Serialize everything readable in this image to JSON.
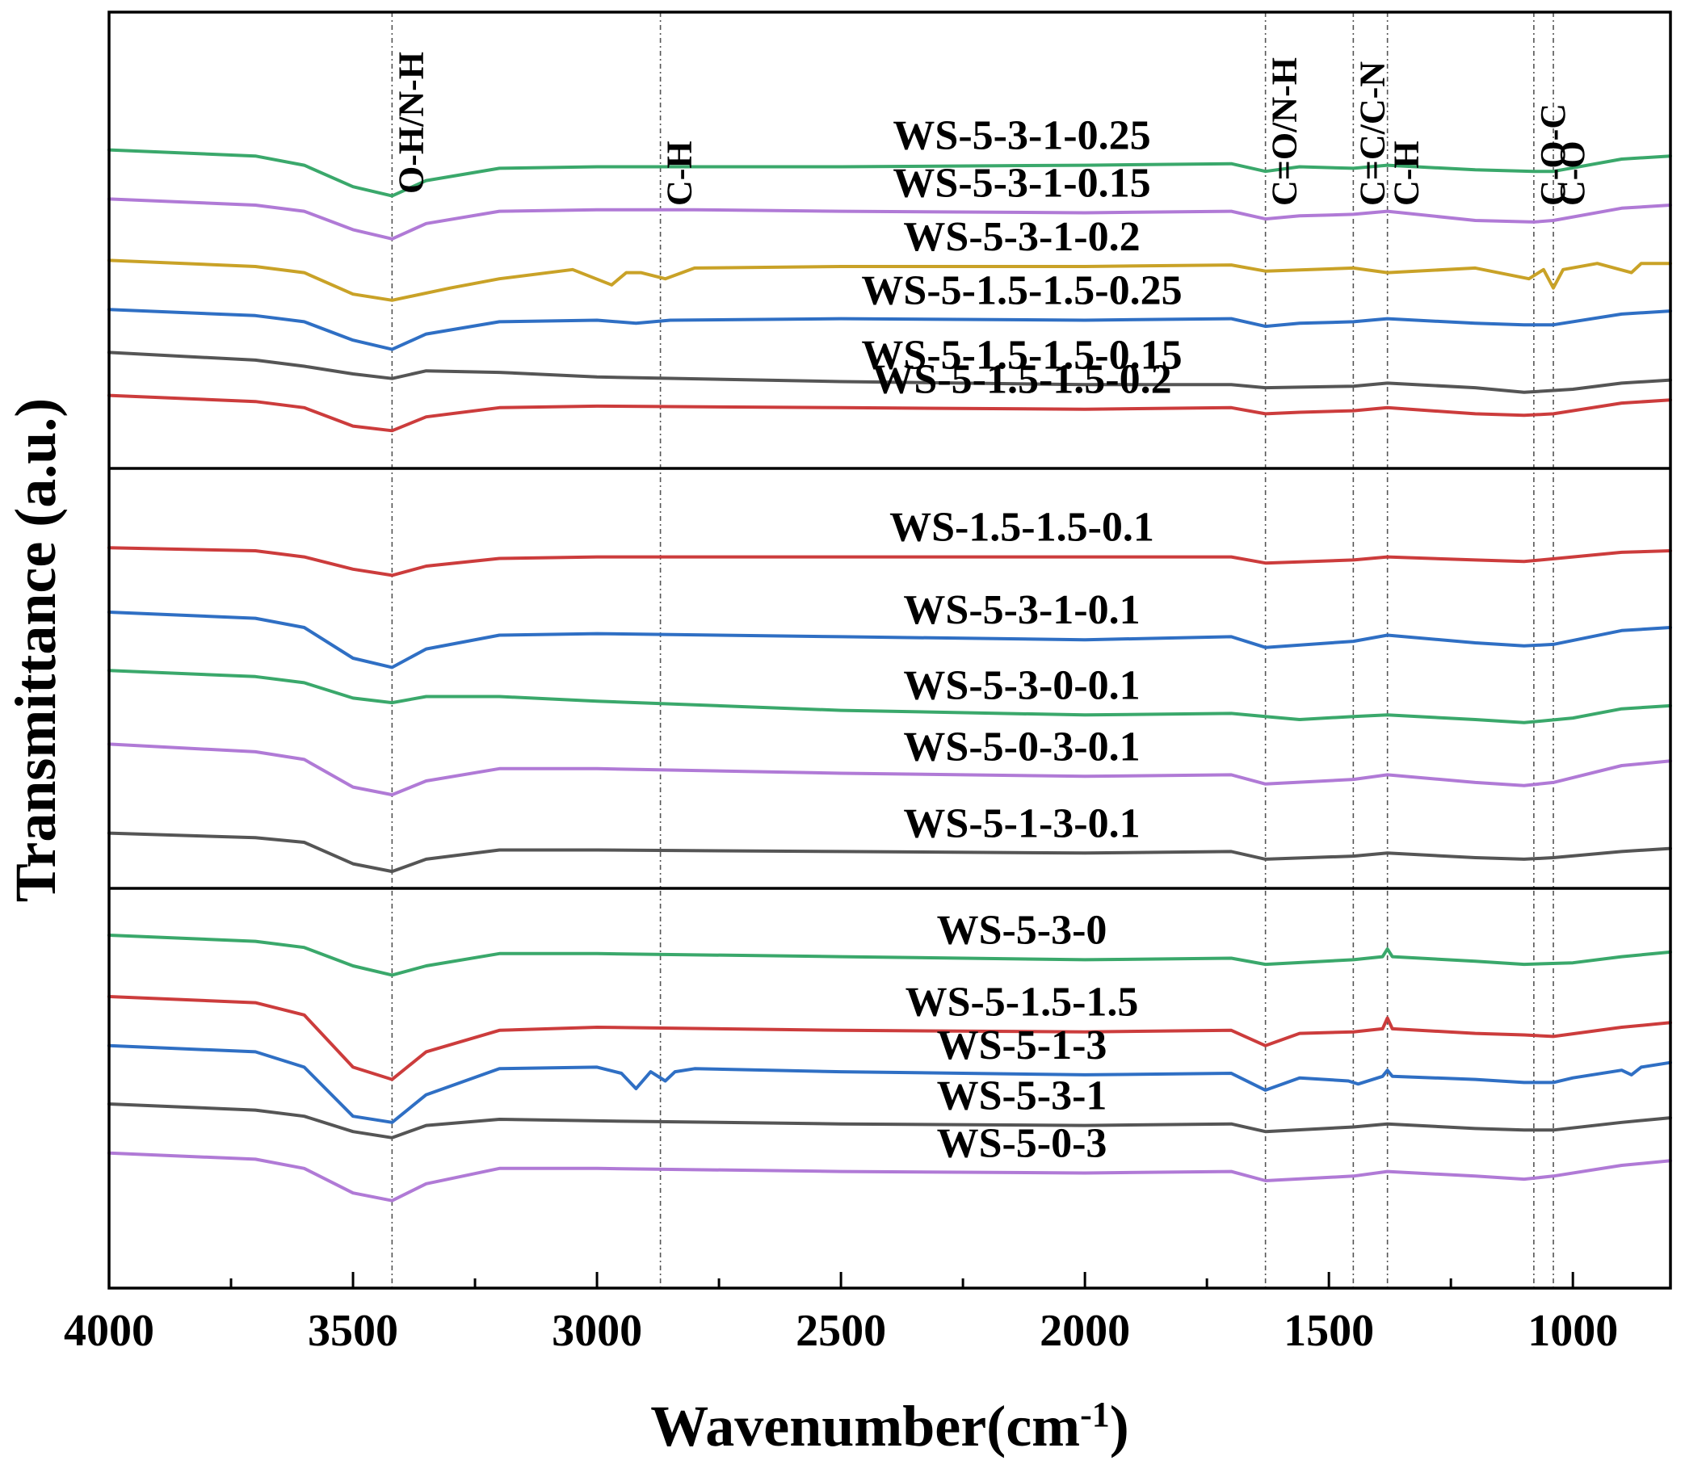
{
  "chart_data": {
    "type": "line",
    "subtype": "stacked FTIR spectra in three panels",
    "title": "",
    "xlabel": "Wavenumber(cm",
    "xlabel_sup": "-1",
    "xlabel_suffix": ")",
    "ylabel": "Transmittance (a.u.)",
    "xlim": [
      4000,
      800
    ],
    "x_reversed": true,
    "x_ticks": [
      4000,
      3500,
      3000,
      2500,
      2000,
      1500,
      1000
    ],
    "x_tick_labels": [
      "4000",
      "3500",
      "3000",
      "2500",
      "2000",
      "1500",
      "1000"
    ],
    "y_ticks": "none",
    "grid": false,
    "legend": "none (series labeled inline)",
    "colors": {
      "green": "#3aa86b",
      "purple": "#b07ad6",
      "gold": "#c9a227",
      "blue": "#2f6fc4",
      "gray": "#555555",
      "red": "#cc3c3c"
    },
    "reference_lines": [
      {
        "x": 3420,
        "label": "O-H/N-H"
      },
      {
        "x": 2870,
        "label": "C-H"
      },
      {
        "x": 1630,
        "label": "C=O/N-H"
      },
      {
        "x": 1450,
        "label": "C=C/C-N"
      },
      {
        "x": 1380,
        "label": "C-H"
      },
      {
        "x": 1080,
        "label": "C-O-C"
      },
      {
        "x": 1040,
        "label": "C-O"
      }
    ],
    "panels": [
      {
        "name": "top",
        "series": [
          {
            "name": "WS-5-3-1-0.25",
            "color": "green",
            "x": [
              4000,
              3700,
              3600,
              3500,
              3420,
              3350,
              3200,
              3000,
              2800,
              2500,
              2000,
              1700,
              1630,
              1560,
              1450,
              1380,
              1200,
              1080,
              1040,
              900,
              800
            ],
            "y": [
              8.8,
              8.6,
              8.3,
              7.6,
              7.3,
              7.8,
              8.2,
              8.25,
              8.25,
              8.25,
              8.3,
              8.35,
              8.1,
              8.25,
              8.2,
              8.3,
              8.15,
              8.1,
              8.1,
              8.5,
              8.6
            ]
          },
          {
            "name": "WS-5-3-1-0.15",
            "color": "purple",
            "x": [
              4000,
              3700,
              3600,
              3500,
              3420,
              3350,
              3200,
              3000,
              2800,
              2500,
              2000,
              1700,
              1630,
              1560,
              1450,
              1380,
              1200,
              1080,
              1040,
              900,
              800
            ],
            "y": [
              7.2,
              7.0,
              6.8,
              6.2,
              5.9,
              6.4,
              6.8,
              6.85,
              6.85,
              6.8,
              6.75,
              6.8,
              6.55,
              6.65,
              6.7,
              6.8,
              6.5,
              6.45,
              6.5,
              6.9,
              7.0
            ]
          },
          {
            "name": "WS-5-3-1-0.2",
            "color": "gold",
            "x": [
              4000,
              3700,
              3600,
              3500,
              3420,
              3300,
              3200,
              3050,
              2970,
              2940,
              2910,
              2860,
              2800,
              2500,
              2000,
              1700,
              1630,
              1450,
              1380,
              1200,
              1090,
              1060,
              1040,
              1020,
              950,
              880,
              860,
              800
            ],
            "y": [
              5.2,
              5.0,
              4.8,
              4.1,
              3.9,
              4.3,
              4.6,
              4.9,
              4.4,
              4.8,
              4.8,
              4.6,
              4.95,
              5.0,
              5.0,
              5.05,
              4.85,
              4.95,
              4.8,
              4.95,
              4.6,
              4.9,
              4.3,
              4.9,
              5.1,
              4.8,
              5.1,
              5.1
            ]
          },
          {
            "name": "WS-5-1.5-1.5-0.25",
            "color": "blue",
            "x": [
              4000,
              3700,
              3600,
              3500,
              3420,
              3350,
              3200,
              3000,
              2920,
              2850,
              2500,
              2000,
              1700,
              1630,
              1560,
              1450,
              1380,
              1200,
              1100,
              1040,
              900,
              800
            ],
            "y": [
              3.6,
              3.4,
              3.2,
              2.6,
              2.3,
              2.8,
              3.2,
              3.25,
              3.15,
              3.25,
              3.3,
              3.25,
              3.3,
              3.05,
              3.15,
              3.2,
              3.3,
              3.15,
              3.1,
              3.1,
              3.45,
              3.55
            ]
          },
          {
            "name": "WS-5-1.5-1.5-0.15",
            "color": "gray",
            "x": [
              4000,
              3700,
              3600,
              3500,
              3420,
              3350,
              3200,
              3000,
              2500,
              2000,
              1700,
              1630,
              1450,
              1380,
              1200,
              1100,
              1000,
              900,
              800
            ],
            "y": [
              2.2,
              1.95,
              1.75,
              1.5,
              1.35,
              1.6,
              1.55,
              1.4,
              1.25,
              1.15,
              1.15,
              1.05,
              1.1,
              1.2,
              1.05,
              0.9,
              1.0,
              1.2,
              1.3
            ]
          },
          {
            "name": "WS-5-1.5-1.5-0.2",
            "color": "red",
            "x": [
              4000,
              3700,
              3600,
              3500,
              3420,
              3350,
              3200,
              3000,
              2500,
              2000,
              1700,
              1630,
              1560,
              1450,
              1380,
              1200,
              1100,
              1040,
              900,
              800
            ],
            "y": [
              0.8,
              0.6,
              0.4,
              -0.2,
              -0.35,
              0.1,
              0.4,
              0.45,
              0.4,
              0.35,
              0.4,
              0.2,
              0.25,
              0.3,
              0.4,
              0.2,
              0.15,
              0.2,
              0.55,
              0.65
            ]
          }
        ]
      },
      {
        "name": "middle",
        "series": [
          {
            "name": "WS-1.5-1.5-0.1",
            "color": "red",
            "x": [
              4000,
              3700,
              3600,
              3500,
              3420,
              3350,
              3200,
              3000,
              2500,
              2000,
              1700,
              1630,
              1450,
              1380,
              1200,
              1100,
              1000,
              900,
              800
            ],
            "y": [
              8.6,
              8.5,
              8.3,
              7.9,
              7.7,
              8.0,
              8.25,
              8.3,
              8.3,
              8.3,
              8.3,
              8.1,
              8.2,
              8.3,
              8.2,
              8.15,
              8.3,
              8.45,
              8.5
            ]
          },
          {
            "name": "WS-5-3-1-0.1",
            "color": "blue",
            "x": [
              4000,
              3700,
              3600,
              3500,
              3420,
              3350,
              3200,
              3000,
              2500,
              2000,
              1700,
              1630,
              1450,
              1380,
              1200,
              1100,
              1040,
              900,
              800
            ],
            "y": [
              6.5,
              6.3,
              6.0,
              5.0,
              4.7,
              5.3,
              5.75,
              5.8,
              5.7,
              5.6,
              5.7,
              5.35,
              5.55,
              5.75,
              5.5,
              5.4,
              5.45,
              5.9,
              6.0
            ]
          },
          {
            "name": "WS-5-3-0-0.1",
            "color": "green",
            "x": [
              4000,
              3700,
              3600,
              3500,
              3420,
              3350,
              3200,
              3000,
              2500,
              2000,
              1700,
              1630,
              1560,
              1450,
              1380,
              1200,
              1100,
              1000,
              900,
              800
            ],
            "y": [
              4.6,
              4.4,
              4.2,
              3.7,
              3.55,
              3.75,
              3.75,
              3.6,
              3.3,
              3.15,
              3.2,
              3.1,
              3.0,
              3.1,
              3.15,
              3.0,
              2.9,
              3.05,
              3.35,
              3.45
            ]
          },
          {
            "name": "WS-5-0-3-0.1",
            "color": "purple",
            "x": [
              4000,
              3700,
              3600,
              3500,
              3420,
              3350,
              3200,
              3000,
              2500,
              2000,
              1700,
              1630,
              1450,
              1380,
              1200,
              1100,
              1040,
              900,
              800
            ],
            "y": [
              2.2,
              1.95,
              1.7,
              0.8,
              0.55,
              1.0,
              1.4,
              1.4,
              1.25,
              1.15,
              1.2,
              0.9,
              1.05,
              1.2,
              0.95,
              0.85,
              0.95,
              1.5,
              1.65
            ]
          },
          {
            "name": "WS-5-1-3-0.1",
            "color": "gray",
            "x": [
              4000,
              3700,
              3600,
              3500,
              3420,
              3350,
              3200,
              3000,
              2500,
              2000,
              1700,
              1630,
              1450,
              1380,
              1200,
              1100,
              1040,
              900,
              800
            ],
            "y": [
              -0.7,
              -0.85,
              -1.0,
              -1.7,
              -1.95,
              -1.55,
              -1.25,
              -1.25,
              -1.3,
              -1.35,
              -1.3,
              -1.55,
              -1.45,
              -1.35,
              -1.5,
              -1.55,
              -1.5,
              -1.3,
              -1.2
            ]
          }
        ]
      },
      {
        "name": "bottom",
        "series": [
          {
            "name": "WS-5-3-0",
            "color": "green",
            "x": [
              4000,
              3700,
              3600,
              3500,
              3420,
              3350,
              3200,
              3000,
              2500,
              2000,
              1700,
              1630,
              1450,
              1390,
              1380,
              1370,
              1200,
              1100,
              1000,
              900,
              800
            ],
            "y": [
              9.0,
              8.8,
              8.6,
              8.0,
              7.7,
              8.0,
              8.4,
              8.4,
              8.3,
              8.2,
              8.25,
              8.05,
              8.2,
              8.3,
              8.55,
              8.3,
              8.15,
              8.05,
              8.1,
              8.3,
              8.45
            ]
          },
          {
            "name": "WS-5-1.5-1.5",
            "color": "red",
            "x": [
              4000,
              3700,
              3600,
              3500,
              3420,
              3350,
              3200,
              3000,
              2500,
              2000,
              1700,
              1630,
              1560,
              1450,
              1390,
              1380,
              1370,
              1200,
              1100,
              1040,
              900,
              800
            ],
            "y": [
              7.0,
              6.8,
              6.4,
              4.7,
              4.3,
              5.2,
              5.9,
              6.0,
              5.9,
              5.85,
              5.9,
              5.4,
              5.8,
              5.85,
              5.95,
              6.3,
              5.95,
              5.8,
              5.75,
              5.7,
              6.0,
              6.15
            ]
          },
          {
            "name": "WS-5-1-3",
            "color": "blue",
            "x": [
              4000,
              3700,
              3600,
              3500,
              3420,
              3350,
              3200,
              3000,
              2950,
              2920,
              2890,
              2860,
              2840,
              2800,
              2500,
              2000,
              1700,
              1630,
              1560,
              1460,
              1440,
              1390,
              1380,
              1370,
              1200,
              1100,
              1040,
              1000,
              900,
              880,
              860,
              800
            ],
            "y": [
              5.4,
              5.2,
              4.7,
              3.1,
              2.9,
              3.8,
              4.65,
              4.7,
              4.5,
              4.0,
              4.55,
              4.25,
              4.55,
              4.65,
              4.55,
              4.45,
              4.5,
              3.95,
              4.35,
              4.25,
              4.15,
              4.4,
              4.6,
              4.4,
              4.3,
              4.2,
              4.2,
              4.35,
              4.6,
              4.45,
              4.7,
              4.85
            ]
          },
          {
            "name": "WS-5-3-1",
            "color": "gray",
            "x": [
              4000,
              3700,
              3600,
              3500,
              3420,
              3350,
              3200,
              3000,
              2500,
              2000,
              1700,
              1630,
              1450,
              1380,
              1200,
              1100,
              1040,
              900,
              800
            ],
            "y": [
              3.5,
              3.3,
              3.1,
              2.6,
              2.4,
              2.8,
              3.0,
              2.95,
              2.85,
              2.8,
              2.85,
              2.6,
              2.75,
              2.85,
              2.7,
              2.65,
              2.65,
              2.9,
              3.05
            ]
          },
          {
            "name": "WS-5-0-3",
            "color": "purple",
            "x": [
              4000,
              3700,
              3600,
              3500,
              3420,
              3350,
              3200,
              3000,
              2500,
              2000,
              1700,
              1630,
              1450,
              1380,
              1200,
              1100,
              1040,
              900,
              800
            ],
            "y": [
              1.9,
              1.7,
              1.4,
              0.6,
              0.35,
              0.9,
              1.4,
              1.4,
              1.3,
              1.25,
              1.3,
              1.0,
              1.15,
              1.3,
              1.15,
              1.05,
              1.15,
              1.5,
              1.65
            ]
          }
        ]
      }
    ]
  }
}
